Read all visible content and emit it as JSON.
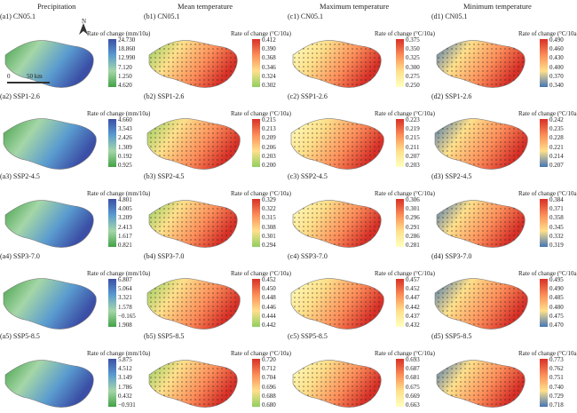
{
  "column_titles": [
    "Precipitation",
    "Mean temperature",
    "Maximum temperature",
    "Minimum temperature"
  ],
  "rows": [
    {
      "panels": [
        {
          "label": "(a1) CN05.1",
          "cb_title": "Rate of change (mm/10a)",
          "ticks": [
            "24.730",
            "18.860",
            "12.990",
            "7.120",
            "1.250",
            "4.620"
          ],
          "colors": [
            "#3b4fa6",
            "#5a9bcf",
            "#a5d6a7",
            "#43a047"
          ]
        },
        {
          "label": "(b1) CN05.1",
          "cb_title": "Rate of change (°C/10a)",
          "ticks": [
            "0.412",
            "0.390",
            "0.368",
            "0.346",
            "0.324",
            "0.302"
          ],
          "colors": [
            "#d73027",
            "#fc8d59",
            "#fee08b",
            "#91cf60"
          ]
        },
        {
          "label": "(c1) CN05.1",
          "cb_title": "Rate of change (°C/10a)",
          "ticks": [
            "0.375",
            "0.350",
            "0.325",
            "0.300",
            "0.275",
            "0.250"
          ],
          "colors": [
            "#d73027",
            "#fc8d59",
            "#fee08b",
            "#ffffbf"
          ]
        },
        {
          "label": "(d1) CN05.1",
          "cb_title": "Rate of change (°C/10a)",
          "ticks": [
            "0.490",
            "0.460",
            "0.430",
            "0.400",
            "0.370",
            "0.340"
          ],
          "colors": [
            "#d73027",
            "#fc8d59",
            "#fee08b",
            "#4575b4"
          ]
        }
      ]
    },
    {
      "panels": [
        {
          "label": "(a2) SSP1-2.6",
          "cb_title": "Rate of change (mm/10a)",
          "ticks": [
            "4.660",
            "3.543",
            "2.426",
            "1.309",
            "0.192",
            "0.925"
          ],
          "colors": [
            "#3b4fa6",
            "#5a9bcf",
            "#a5d6a7",
            "#43a047"
          ]
        },
        {
          "label": "(b2) SSP1-2.6",
          "cb_title": "Rate of change (°C/10a)",
          "ticks": [
            "0.215",
            "0.213",
            "0.209",
            "0.206",
            "0.203",
            "0.200"
          ],
          "colors": [
            "#d73027",
            "#fc8d59",
            "#fee08b",
            "#91cf60"
          ]
        },
        {
          "label": "(c2) SSP1-2.6",
          "cb_title": "Rate of change (°C/10a)",
          "ticks": [
            "0.223",
            "0.219",
            "0.215",
            "0.211",
            "0.207",
            "0.203"
          ],
          "colors": [
            "#d73027",
            "#fc8d59",
            "#fee08b",
            "#ffffbf"
          ]
        },
        {
          "label": "(d2) SSP1-2.6",
          "cb_title": "Rate of change (°C/10a)",
          "ticks": [
            "0.242",
            "0.235",
            "0.228",
            "0.221",
            "0.214",
            "0.207"
          ],
          "colors": [
            "#d73027",
            "#fc8d59",
            "#fee08b",
            "#4575b4"
          ]
        }
      ]
    },
    {
      "panels": [
        {
          "label": "(a3) SSP2-4.5",
          "cb_title": "Rate of change (mm/10a)",
          "ticks": [
            "4.801",
            "4.005",
            "3.209",
            "2.413",
            "1.617",
            "0.821"
          ],
          "colors": [
            "#3b4fa6",
            "#5a9bcf",
            "#a5d6a7",
            "#43a047"
          ]
        },
        {
          "label": "(b3) SSP2-4.5",
          "cb_title": "Rate of change (°C/10a)",
          "ticks": [
            "0.329",
            "0.322",
            "0.315",
            "0.308",
            "0.301",
            "0.294"
          ],
          "colors": [
            "#d73027",
            "#fc8d59",
            "#fee08b",
            "#91cf60"
          ]
        },
        {
          "label": "(c3) SSP2-4.5",
          "cb_title": "Rate of change (°C/10a)",
          "ticks": [
            "0.306",
            "0.301",
            "0.296",
            "0.291",
            "0.286",
            "0.281"
          ],
          "colors": [
            "#d73027",
            "#fc8d59",
            "#fee08b",
            "#ffffbf"
          ]
        },
        {
          "label": "(d3) SSP2-4.5",
          "cb_title": "Rate of change (°C/10a)",
          "ticks": [
            "0.384",
            "0.371",
            "0.358",
            "0.345",
            "0.332",
            "0.319"
          ],
          "colors": [
            "#d73027",
            "#fc8d59",
            "#fee08b",
            "#4575b4"
          ]
        }
      ]
    },
    {
      "panels": [
        {
          "label": "(a4) SSP3-7.0",
          "cb_title": "Rate of change (mm/10a)",
          "ticks": [
            "6.807",
            "5.064",
            "3.321",
            "1.578",
            "−0.165",
            "1.908"
          ],
          "colors": [
            "#3b4fa6",
            "#5a9bcf",
            "#a5d6a7",
            "#43a047"
          ]
        },
        {
          "label": "(b4) SSP3-7.0",
          "cb_title": "Rate of change (°C/10a)",
          "ticks": [
            "0.452",
            "0.450",
            "0.448",
            "0.446",
            "0.444",
            "0.442"
          ],
          "colors": [
            "#d73027",
            "#fc8d59",
            "#fee08b",
            "#91cf60"
          ]
        },
        {
          "label": "(c4) SSP3-7.0",
          "cb_title": "Rate of change (°C/10a)",
          "ticks": [
            "0.457",
            "0.452",
            "0.447",
            "0.442",
            "0.437",
            "0.432"
          ],
          "colors": [
            "#d73027",
            "#fc8d59",
            "#fee08b",
            "#ffffbf"
          ]
        },
        {
          "label": "(d4) SSP3-7.0",
          "cb_title": "Rate of change (°C/10a)",
          "ticks": [
            "0.495",
            "0.490",
            "0.485",
            "0.480",
            "0.475",
            "0.470"
          ],
          "colors": [
            "#d73027",
            "#fc8d59",
            "#fee08b",
            "#4575b4"
          ]
        }
      ]
    },
    {
      "panels": [
        {
          "label": "(a5) SSP5-8.5",
          "cb_title": "Rate of change (mm/10a)",
          "ticks": [
            "5.875",
            "4.512",
            "3.149",
            "1.786",
            "0.432",
            "−0.931"
          ],
          "colors": [
            "#3b4fa6",
            "#5a9bcf",
            "#a5d6a7",
            "#43a047"
          ]
        },
        {
          "label": "(b5) SSP5-8.5",
          "cb_title": "Rate of change (°C/10a)",
          "ticks": [
            "0.720",
            "0.712",
            "0.704",
            "0.696",
            "0.688",
            "0.680"
          ],
          "colors": [
            "#d73027",
            "#fc8d59",
            "#fee08b",
            "#91cf60"
          ]
        },
        {
          "label": "(c5) SSP5-8.5",
          "cb_title": "Rate of change (°C/10a)",
          "ticks": [
            "0.693",
            "0.687",
            "0.681",
            "0.675",
            "0.669",
            "0.663"
          ],
          "colors": [
            "#d73027",
            "#fc8d59",
            "#fee08b",
            "#ffffbf"
          ]
        },
        {
          "label": "(d5) SSP5-8.5",
          "cb_title": "Rate of change (°C/10a)",
          "ticks": [
            "0.773",
            "0.762",
            "0.751",
            "0.740",
            "0.729",
            "0.718"
          ],
          "colors": [
            "#d73027",
            "#fc8d59",
            "#fee08b",
            "#4575b4"
          ]
        }
      ]
    }
  ],
  "annotations": {
    "north": "N",
    "scale_text": "50 km",
    "scale_zero": "0"
  }
}
